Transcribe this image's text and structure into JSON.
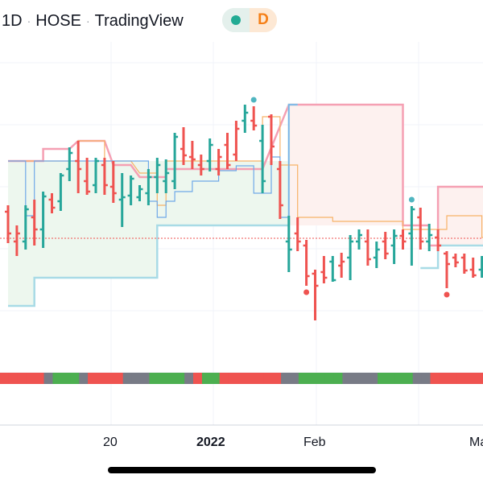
{
  "header": {
    "symbol_fragment": "1D",
    "exchange": "HOSE",
    "source": "TradingView",
    "separator": "·",
    "pill_letter": "D",
    "pill_dot_icon": "green-dot-icon"
  },
  "x_axis_labels": [
    "20",
    "2022",
    "Feb",
    "Ma"
  ],
  "colors": {
    "up": "#26a69a",
    "down": "#ef5350",
    "upper_band": "#f5a0b3",
    "lower_band": "#a8dbe6",
    "upper_fill": "#fdf1ef",
    "lower_fill": "#edf7ee",
    "orange_line": "#f7b267",
    "blue_line": "#6fa8e8",
    "ref_line": "#ef5350",
    "strip_red": "#ef5350",
    "strip_green": "#4caf50",
    "strip_gray": "#787b86"
  },
  "chart_data": {
    "type": "ohlc",
    "bars": [
      {
        "o": 263,
        "h": 255,
        "l": 302,
        "c": 290,
        "up": false
      },
      {
        "o": 300,
        "h": 280,
        "l": 318,
        "c": 290,
        "up": false
      },
      {
        "o": 300,
        "h": 255,
        "l": 310,
        "c": 260,
        "up": true
      },
      {
        "o": 270,
        "h": 248,
        "l": 305,
        "c": 285,
        "up": false
      },
      {
        "o": 285,
        "h": 238,
        "l": 308,
        "c": 244,
        "up": true
      },
      {
        "o": 248,
        "h": 240,
        "l": 265,
        "c": 258,
        "up": false
      },
      {
        "o": 250,
        "h": 215,
        "l": 262,
        "c": 218,
        "up": true
      },
      {
        "o": 210,
        "h": 183,
        "l": 225,
        "c": 190,
        "up": true
      },
      {
        "o": 200,
        "h": 175,
        "l": 240,
        "c": 210,
        "up": false
      },
      {
        "o": 225,
        "h": 196,
        "l": 242,
        "c": 238,
        "up": false
      },
      {
        "o": 230,
        "h": 196,
        "l": 240,
        "c": 200,
        "up": true
      },
      {
        "o": 205,
        "h": 196,
        "l": 242,
        "c": 230,
        "up": false
      },
      {
        "o": 232,
        "h": 200,
        "l": 252,
        "c": 240,
        "up": false
      },
      {
        "o": 248,
        "h": 215,
        "l": 282,
        "c": 245,
        "up": true
      },
      {
        "o": 243,
        "h": 218,
        "l": 255,
        "c": 222,
        "up": true
      },
      {
        "o": 245,
        "h": 230,
        "l": 250,
        "c": 235,
        "up": true
      },
      {
        "o": 240,
        "h": 210,
        "l": 255,
        "c": 220,
        "up": true
      },
      {
        "o": 220,
        "h": 196,
        "l": 240,
        "c": 205,
        "up": true
      },
      {
        "o": 225,
        "h": 198,
        "l": 240,
        "c": 215,
        "up": true
      },
      {
        "o": 225,
        "h": 165,
        "l": 235,
        "c": 170,
        "up": true
      },
      {
        "o": 185,
        "h": 158,
        "l": 205,
        "c": 193,
        "up": false
      },
      {
        "o": 195,
        "h": 175,
        "l": 210,
        "c": 198,
        "up": false
      },
      {
        "o": 205,
        "h": 192,
        "l": 218,
        "c": 210,
        "up": false
      },
      {
        "o": 200,
        "h": 172,
        "l": 213,
        "c": 180,
        "up": true
      },
      {
        "o": 210,
        "h": 185,
        "l": 218,
        "c": 195,
        "up": false
      },
      {
        "o": 180,
        "h": 165,
        "l": 210,
        "c": 205,
        "up": false
      },
      {
        "o": 192,
        "h": 150,
        "l": 200,
        "c": 160,
        "up": false
      },
      {
        "o": 150,
        "h": 130,
        "l": 165,
        "c": 140,
        "up": true
      },
      {
        "o": 150,
        "h": 132,
        "l": 162,
        "c": 156,
        "up": false
      },
      {
        "o": 175,
        "h": 155,
        "l": 240,
        "c": 225,
        "up": true
      },
      {
        "o": 145,
        "h": 142,
        "l": 205,
        "c": 182,
        "up": false
      },
      {
        "o": 210,
        "h": 200,
        "l": 272,
        "c": 255,
        "up": false
      },
      {
        "o": 300,
        "h": 268,
        "l": 338,
        "c": 310,
        "up": true
      },
      {
        "o": 290,
        "h": 270,
        "l": 312,
        "c": 300,
        "up": false
      },
      {
        "o": 305,
        "h": 298,
        "l": 355,
        "c": 343,
        "up": false
      },
      {
        "o": 340,
        "h": 335,
        "l": 398,
        "c": 355,
        "up": false
      },
      {
        "o": 338,
        "h": 318,
        "l": 352,
        "c": 345,
        "up": false
      },
      {
        "o": 325,
        "h": 318,
        "l": 350,
        "c": 348,
        "up": true
      },
      {
        "o": 330,
        "h": 314,
        "l": 345,
        "c": 325,
        "up": false
      },
      {
        "o": 320,
        "h": 292,
        "l": 348,
        "c": 300,
        "up": true
      },
      {
        "o": 300,
        "h": 285,
        "l": 310,
        "c": 292,
        "up": true
      },
      {
        "o": 300,
        "h": 285,
        "l": 330,
        "c": 322,
        "up": false
      },
      {
        "o": 320,
        "h": 300,
        "l": 333,
        "c": 310,
        "up": true
      },
      {
        "o": 300,
        "h": 288,
        "l": 322,
        "c": 315,
        "up": false
      },
      {
        "o": 305,
        "h": 285,
        "l": 328,
        "c": 293,
        "up": true
      },
      {
        "o": 293,
        "h": 285,
        "l": 310,
        "c": 300,
        "up": false
      },
      {
        "o": 290,
        "h": 256,
        "l": 330,
        "c": 260,
        "up": true
      },
      {
        "o": 270,
        "h": 258,
        "l": 310,
        "c": 300,
        "up": false
      },
      {
        "o": 300,
        "h": 278,
        "l": 312,
        "c": 292,
        "up": true
      },
      {
        "o": 295,
        "h": 285,
        "l": 312,
        "c": 305,
        "up": false
      },
      {
        "o": 315,
        "h": 312,
        "l": 358,
        "c": 328,
        "up": false
      },
      {
        "o": 320,
        "h": 315,
        "l": 332,
        "c": 326,
        "up": false
      },
      {
        "o": 320,
        "h": 315,
        "l": 340,
        "c": 336,
        "up": false
      },
      {
        "o": 335,
        "h": 320,
        "l": 345,
        "c": 342,
        "up": false
      },
      {
        "o": 335,
        "h": 318,
        "l": 345,
        "c": 325,
        "up": true
      }
    ],
    "marker_dots": [
      {
        "bar": 28,
        "side": "high",
        "color": "#4fb5c0"
      },
      {
        "bar": 34,
        "side": "low",
        "color": "#ef5350"
      },
      {
        "bar": 46,
        "side": "high",
        "color": "#4fb5c0"
      },
      {
        "bar": 50,
        "side": "low",
        "color": "#ef5350"
      }
    ],
    "upper_band": [
      [
        0,
        200
      ],
      [
        4,
        200
      ],
      [
        4,
        185
      ],
      [
        7,
        185
      ],
      [
        8,
        175
      ],
      [
        11,
        175
      ],
      [
        12,
        205
      ],
      [
        14,
        205
      ],
      [
        15,
        220
      ],
      [
        18,
        220
      ],
      [
        18,
        210
      ],
      [
        23,
        210
      ],
      [
        29,
        210
      ],
      [
        32,
        130
      ],
      [
        45,
        130
      ],
      [
        45,
        280
      ],
      [
        48,
        280
      ],
      [
        48,
        305
      ],
      [
        49,
        305
      ],
      [
        49,
        232
      ],
      [
        55,
        232
      ]
    ],
    "lower_band": [
      [
        0,
        380
      ],
      [
        3,
        380
      ],
      [
        3,
        345
      ],
      [
        17,
        345
      ],
      [
        17,
        280
      ],
      [
        32,
        280
      ],
      [
        32,
        130
      ],
      [
        33,
        130
      ]
    ],
    "lower_band2": [
      [
        47,
        333
      ],
      [
        49,
        333
      ],
      [
        49,
        305
      ],
      [
        55,
        305
      ]
    ],
    "orange_line": [
      [
        0,
        200
      ],
      [
        8,
        200
      ],
      [
        8,
        175
      ],
      [
        11,
        175
      ],
      [
        11,
        200
      ],
      [
        14,
        200
      ],
      [
        15,
        215
      ],
      [
        17,
        215
      ],
      [
        17,
        255
      ],
      [
        18,
        255
      ],
      [
        18,
        200
      ],
      [
        29,
        200
      ],
      [
        29,
        145
      ],
      [
        31,
        145
      ],
      [
        31,
        205
      ],
      [
        33,
        205
      ],
      [
        33,
        270
      ],
      [
        37,
        270
      ],
      [
        37,
        275
      ],
      [
        45,
        275
      ],
      [
        45,
        285
      ],
      [
        50,
        285
      ],
      [
        50,
        268
      ],
      [
        54,
        268
      ],
      [
        54,
        295
      ],
      [
        55,
        295
      ]
    ],
    "blue_line": [
      [
        0,
        200
      ],
      [
        2,
        200
      ],
      [
        2,
        268
      ],
      [
        3,
        268
      ],
      [
        3,
        200
      ],
      [
        16,
        200
      ],
      [
        16,
        250
      ],
      [
        17,
        250
      ],
      [
        17,
        270
      ],
      [
        18,
        270
      ],
      [
        18,
        250
      ],
      [
        19,
        250
      ],
      [
        19,
        238
      ],
      [
        21,
        238
      ],
      [
        21,
        225
      ],
      [
        24,
        225
      ],
      [
        24,
        212
      ],
      [
        26,
        212
      ],
      [
        26,
        206
      ],
      [
        28,
        206
      ],
      [
        28,
        240
      ],
      [
        30,
        240
      ],
      [
        30,
        195
      ],
      [
        31,
        195
      ],
      [
        31,
        270
      ],
      [
        32,
        270
      ],
      [
        32,
        130
      ],
      [
        33,
        130
      ]
    ],
    "ref_price_y": 296,
    "status_strip": [
      "red",
      "red",
      "red",
      "red",
      "red",
      "gray",
      "green",
      "green",
      "green",
      "gray",
      "red",
      "red",
      "red",
      "red",
      "gray",
      "gray",
      "gray",
      "green",
      "green",
      "green",
      "green",
      "gray",
      "red",
      "green",
      "green",
      "red",
      "red",
      "red",
      "red",
      "red",
      "red",
      "red",
      "gray",
      "gray",
      "green",
      "green",
      "green",
      "green",
      "green",
      "gray",
      "gray",
      "gray",
      "gray",
      "green",
      "green",
      "green",
      "green",
      "gray",
      "gray",
      "red",
      "red",
      "red",
      "red",
      "red",
      "red"
    ]
  }
}
